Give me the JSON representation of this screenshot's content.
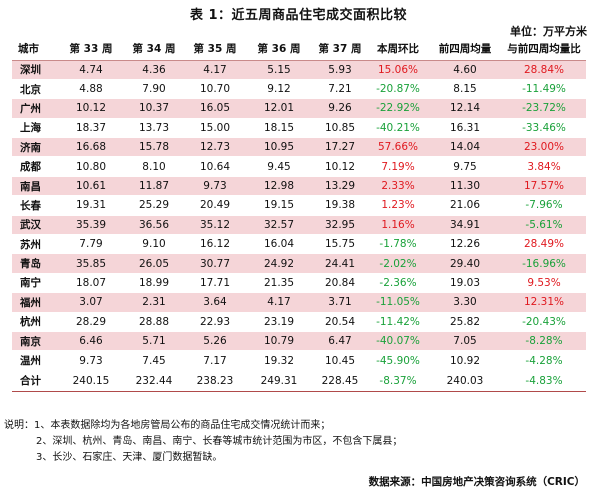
{
  "title": "表 1：近五周商品住宅成交面积比较",
  "unit": "单位：万平方米",
  "table": {
    "headers": [
      "城市",
      "第 33 周",
      "第 34 周",
      "第 35 周",
      "第 36 周",
      "第 37 周",
      "本周环比",
      "前四周均量",
      "与前四周均量比"
    ],
    "rows": [
      {
        "city": "深圳",
        "w33": "4.74",
        "w34": "4.36",
        "w35": "4.17",
        "w36": "5.15",
        "w37": "5.93",
        "wow": "15.06%",
        "avg4": "4.60",
        "vsavg": "28.84%",
        "shaded": true
      },
      {
        "city": "北京",
        "w33": "4.88",
        "w34": "7.90",
        "w35": "10.70",
        "w36": "9.12",
        "w37": "7.21",
        "wow": "-20.87%",
        "avg4": "8.15",
        "vsavg": "-11.49%",
        "shaded": false
      },
      {
        "city": "广州",
        "w33": "10.12",
        "w34": "10.37",
        "w35": "16.05",
        "w36": "12.01",
        "w37": "9.26",
        "wow": "-22.92%",
        "avg4": "12.14",
        "vsavg": "-23.72%",
        "shaded": true
      },
      {
        "city": "上海",
        "w33": "18.37",
        "w34": "13.73",
        "w35": "15.00",
        "w36": "18.15",
        "w37": "10.85",
        "wow": "-40.21%",
        "avg4": "16.31",
        "vsavg": "-33.46%",
        "shaded": false
      },
      {
        "city": "济南",
        "w33": "16.68",
        "w34": "15.78",
        "w35": "12.73",
        "w36": "10.95",
        "w37": "17.27",
        "wow": "57.66%",
        "avg4": "14.04",
        "vsavg": "23.00%",
        "shaded": true
      },
      {
        "city": "成都",
        "w33": "10.80",
        "w34": "8.10",
        "w35": "10.64",
        "w36": "9.45",
        "w37": "10.12",
        "wow": "7.19%",
        "avg4": "9.75",
        "vsavg": "3.84%",
        "shaded": false
      },
      {
        "city": "南昌",
        "w33": "10.61",
        "w34": "11.87",
        "w35": "9.73",
        "w36": "12.98",
        "w37": "13.29",
        "wow": "2.33%",
        "avg4": "11.30",
        "vsavg": "17.57%",
        "shaded": true
      },
      {
        "city": "长春",
        "w33": "19.31",
        "w34": "25.29",
        "w35": "20.49",
        "w36": "19.15",
        "w37": "19.38",
        "wow": "1.23%",
        "avg4": "21.06",
        "vsavg": "-7.96%",
        "shaded": false
      },
      {
        "city": "武汉",
        "w33": "35.39",
        "w34": "36.56",
        "w35": "35.12",
        "w36": "32.57",
        "w37": "32.95",
        "wow": "1.16%",
        "avg4": "34.91",
        "vsavg": "-5.61%",
        "shaded": true
      },
      {
        "city": "苏州",
        "w33": "7.79",
        "w34": "9.10",
        "w35": "16.12",
        "w36": "16.04",
        "w37": "15.75",
        "wow": "-1.78%",
        "avg4": "12.26",
        "vsavg": "28.49%",
        "shaded": false
      },
      {
        "city": "青岛",
        "w33": "35.85",
        "w34": "26.05",
        "w35": "30.77",
        "w36": "24.92",
        "w37": "24.41",
        "wow": "-2.02%",
        "avg4": "29.40",
        "vsavg": "-16.96%",
        "shaded": true
      },
      {
        "city": "南宁",
        "w33": "18.07",
        "w34": "18.99",
        "w35": "17.71",
        "w36": "21.35",
        "w37": "20.84",
        "wow": "-2.36%",
        "avg4": "19.03",
        "vsavg": "9.53%",
        "shaded": false
      },
      {
        "city": "福州",
        "w33": "3.07",
        "w34": "2.31",
        "w35": "3.64",
        "w36": "4.17",
        "w37": "3.71",
        "wow": "-11.05%",
        "avg4": "3.30",
        "vsavg": "12.31%",
        "shaded": true
      },
      {
        "city": "杭州",
        "w33": "28.29",
        "w34": "28.88",
        "w35": "22.93",
        "w36": "23.19",
        "w37": "20.54",
        "wow": "-11.42%",
        "avg4": "25.82",
        "vsavg": "-20.43%",
        "shaded": false
      },
      {
        "city": "南京",
        "w33": "6.46",
        "w34": "5.71",
        "w35": "5.26",
        "w36": "10.79",
        "w37": "6.47",
        "wow": "-40.07%",
        "avg4": "7.05",
        "vsavg": "-8.28%",
        "shaded": true
      },
      {
        "city": "温州",
        "w33": "9.73",
        "w34": "7.45",
        "w35": "7.17",
        "w36": "19.32",
        "w37": "10.45",
        "wow": "-45.90%",
        "avg4": "10.92",
        "vsavg": "-4.28%",
        "shaded": false
      }
    ],
    "total": {
      "city": "合计",
      "w33": "240.15",
      "w34": "232.44",
      "w35": "238.23",
      "w36": "249.31",
      "w37": "228.45",
      "wow": "-8.37%",
      "avg4": "240.03",
      "vsavg": "-4.83%"
    }
  },
  "notes": [
    "说明：1、本表数据除均为各地房管局公布的商品住宅成交情况统计而来；",
    "2、深圳、杭州、青岛、南昌、南宁、长春等城市统计范围为市区，不包含下属县；",
    "3、长沙、石家庄、天津、厦门数据暂缺。"
  ],
  "source": "数据来源：中国房地产决策咨询系统（CRIC）",
  "colors": {
    "positive": "#e0191f",
    "negative": "#1aa13a",
    "shade": "#f5d5d8"
  }
}
